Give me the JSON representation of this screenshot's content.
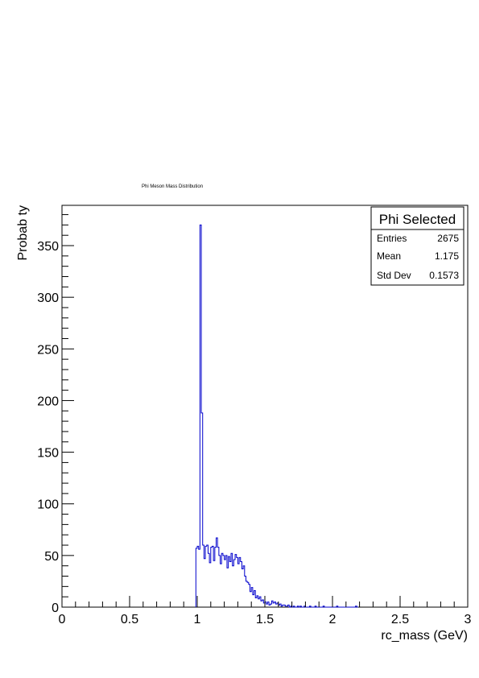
{
  "chart_data": {
    "type": "histogram",
    "title": "Phi Meson Mass Distribution",
    "xlabel": "rc_mass (GeV)",
    "ylabel": "Probab  ty",
    "xlim": [
      0,
      3
    ],
    "ylim": [
      0,
      389
    ],
    "bin_width": 0.01,
    "x_ticks": [
      0,
      0.5,
      1,
      1.5,
      2,
      2.5,
      3
    ],
    "x_tick_labels": [
      "0",
      "0.5",
      "1",
      "1.5",
      "2",
      "2.5",
      "3"
    ],
    "y_ticks": [
      0,
      50,
      100,
      150,
      200,
      250,
      300,
      350
    ],
    "y_tick_labels": [
      "0",
      "50",
      "100",
      "150",
      "200",
      "250",
      "300",
      "350"
    ],
    "series": [
      {
        "color": "#0000cc",
        "bins": [
          [
            0.99,
            57
          ],
          [
            1.0,
            59
          ],
          [
            1.01,
            56
          ],
          [
            1.02,
            370
          ],
          [
            1.03,
            188
          ],
          [
            1.04,
            60
          ],
          [
            1.05,
            47
          ],
          [
            1.06,
            59
          ],
          [
            1.07,
            60
          ],
          [
            1.08,
            52
          ],
          [
            1.09,
            43
          ],
          [
            1.1,
            58
          ],
          [
            1.11,
            59
          ],
          [
            1.12,
            45
          ],
          [
            1.13,
            58
          ],
          [
            1.14,
            67
          ],
          [
            1.15,
            58
          ],
          [
            1.16,
            50
          ],
          [
            1.17,
            42
          ],
          [
            1.18,
            52
          ],
          [
            1.19,
            50
          ],
          [
            1.2,
            46
          ],
          [
            1.21,
            50
          ],
          [
            1.22,
            38
          ],
          [
            1.23,
            49
          ],
          [
            1.24,
            44
          ],
          [
            1.25,
            52
          ],
          [
            1.26,
            40
          ],
          [
            1.27,
            46
          ],
          [
            1.28,
            51
          ],
          [
            1.29,
            48
          ],
          [
            1.3,
            42
          ],
          [
            1.31,
            48
          ],
          [
            1.32,
            44
          ],
          [
            1.33,
            37
          ],
          [
            1.34,
            40
          ],
          [
            1.35,
            30
          ],
          [
            1.36,
            25
          ],
          [
            1.37,
            24
          ],
          [
            1.38,
            22
          ],
          [
            1.39,
            15
          ],
          [
            1.4,
            19
          ],
          [
            1.41,
            12
          ],
          [
            1.42,
            16
          ],
          [
            1.43,
            9
          ],
          [
            1.44,
            11
          ],
          [
            1.45,
            8
          ],
          [
            1.46,
            10
          ],
          [
            1.47,
            6
          ],
          [
            1.48,
            7
          ],
          [
            1.49,
            4
          ],
          [
            1.5,
            5
          ],
          [
            1.51,
            3
          ],
          [
            1.52,
            5
          ],
          [
            1.53,
            2
          ],
          [
            1.54,
            3
          ],
          [
            1.55,
            6
          ],
          [
            1.56,
            4
          ],
          [
            1.57,
            5
          ],
          [
            1.58,
            3
          ],
          [
            1.59,
            4
          ],
          [
            1.6,
            2
          ],
          [
            1.61,
            3
          ],
          [
            1.62,
            1
          ],
          [
            1.63,
            2
          ],
          [
            1.64,
            2
          ],
          [
            1.65,
            1
          ],
          [
            1.66,
            1
          ],
          [
            1.67,
            2
          ],
          [
            1.68,
            0
          ],
          [
            1.69,
            1
          ],
          [
            1.7,
            0
          ],
          [
            1.71,
            1
          ],
          [
            1.72,
            0
          ],
          [
            1.73,
            0
          ],
          [
            1.74,
            1
          ],
          [
            1.75,
            0
          ],
          [
            1.76,
            1
          ],
          [
            1.77,
            0
          ],
          [
            1.78,
            0
          ],
          [
            1.79,
            1
          ],
          [
            1.8,
            0
          ],
          [
            1.81,
            0
          ],
          [
            1.82,
            0
          ],
          [
            1.83,
            1
          ],
          [
            1.84,
            0
          ],
          [
            1.85,
            0
          ],
          [
            1.86,
            0
          ],
          [
            1.87,
            1
          ],
          [
            1.88,
            0
          ],
          [
            1.89,
            0
          ],
          [
            1.9,
            0
          ],
          [
            1.91,
            0
          ],
          [
            1.92,
            0
          ],
          [
            1.93,
            1
          ],
          [
            1.94,
            0
          ],
          [
            1.95,
            0
          ],
          [
            1.96,
            0
          ],
          [
            1.97,
            0
          ],
          [
            1.98,
            0
          ],
          [
            1.99,
            0
          ],
          [
            2.0,
            0
          ],
          [
            2.01,
            0
          ],
          [
            2.02,
            0
          ],
          [
            2.03,
            1
          ],
          [
            2.04,
            0
          ],
          [
            2.05,
            0
          ],
          [
            2.06,
            0
          ],
          [
            2.07,
            0
          ],
          [
            2.08,
            0
          ],
          [
            2.09,
            0
          ],
          [
            2.1,
            0
          ],
          [
            2.11,
            0
          ],
          [
            2.12,
            0
          ],
          [
            2.13,
            0
          ],
          [
            2.14,
            0
          ],
          [
            2.15,
            0
          ],
          [
            2.16,
            0
          ],
          [
            2.17,
            1
          ],
          [
            2.18,
            0
          ]
        ]
      }
    ],
    "grid": false,
    "legend": {
      "placement": "top-right",
      "title": "Phi Selected",
      "rows": [
        {
          "label": "Entries",
          "value": "2675"
        },
        {
          "label": "Mean",
          "value": "1.175"
        },
        {
          "label": "Std Dev",
          "value": "0.1573"
        }
      ]
    }
  }
}
